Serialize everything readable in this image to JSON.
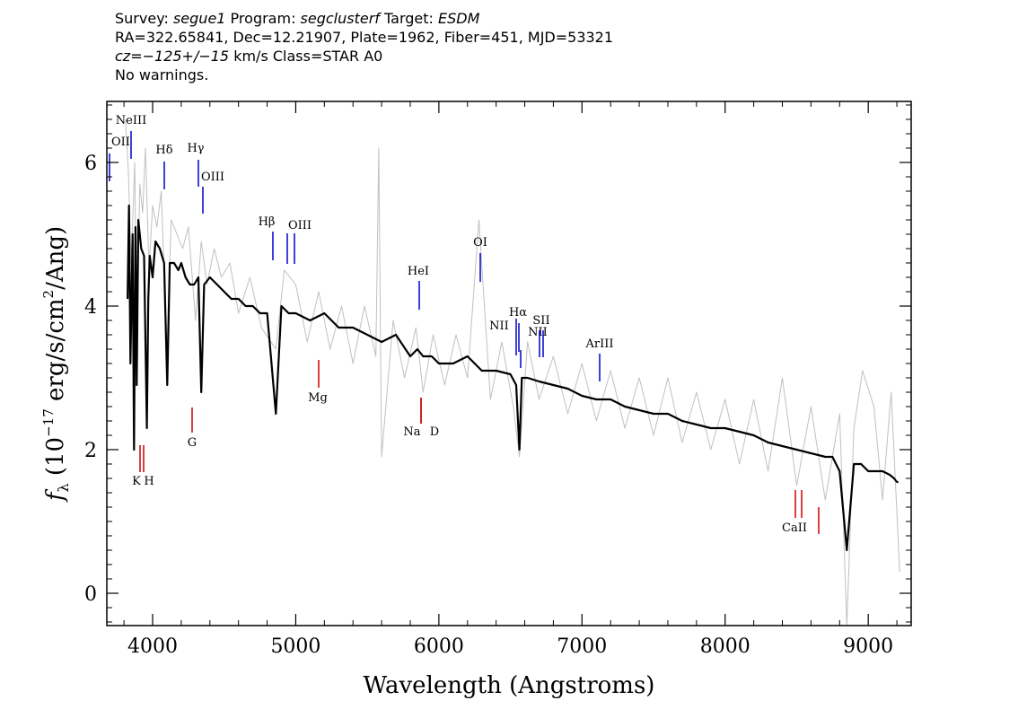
{
  "header": {
    "survey_key": "Survey: ",
    "survey": "segue1",
    "program_key": " Program: ",
    "program": "segclusterf",
    "target_key": " Target: ",
    "target": "ESDM",
    "line2": "RA=322.65841, Dec=12.21907, Plate=1962, Fiber=451, MJD=53321",
    "cz": "cz=−125+/−15",
    "cz_rest": " km/s Class=STAR A0",
    "warnings": "No warnings."
  },
  "chart_data": {
    "type": "line",
    "xlabel": "Wavelength (Angstroms)",
    "ylabel_prefix": "f",
    "ylabel_sub": "λ",
    "ylabel_open": " (10",
    "ylabel_exp": "−17",
    "ylabel_mid": " erg/s/cm",
    "ylabel_exp2": "2",
    "ylabel_close": "/Ang)",
    "xlim": [
      3680,
      9300
    ],
    "ylim": [
      -0.45,
      6.85
    ],
    "x_ticks": [
      4000,
      5000,
      6000,
      7000,
      8000,
      9000
    ],
    "x_tick_labels": [
      "4000",
      "5000",
      "6000",
      "7000",
      "8000",
      "9000"
    ],
    "y_ticks": [
      0,
      2,
      4,
      6
    ],
    "y_tick_labels": [
      "0",
      "2",
      "4",
      "6"
    ],
    "colors": {
      "flux": "#000000",
      "flux_raw": "#c0c0c0",
      "emission": "#0000cc",
      "absorption": "#cc0000"
    },
    "series": [
      {
        "role": "flux-smoothed",
        "x": [
          3825,
          3835,
          3845,
          3860,
          3870,
          3880,
          3889,
          3900,
          3920,
          3940,
          3960,
          3970,
          3980,
          4000,
          4020,
          4050,
          4080,
          4102,
          4120,
          4150,
          4180,
          4200,
          4230,
          4260,
          4290,
          4320,
          4340,
          4360,
          4400,
          4450,
          4500,
          4550,
          4600,
          4650,
          4700,
          4750,
          4800,
          4861,
          4900,
          4950,
          5000,
          5100,
          5200,
          5300,
          5400,
          5500,
          5600,
          5700,
          5800,
          5850,
          5890,
          5950,
          6000,
          6100,
          6200,
          6300,
          6400,
          6500,
          6540,
          6563,
          6580,
          6620,
          6700,
          6800,
          6900,
          7000,
          7100,
          7200,
          7300,
          7400,
          7500,
          7600,
          7700,
          7800,
          7900,
          8000,
          8100,
          8200,
          8300,
          8400,
          8500,
          8600,
          8700,
          8750,
          8800,
          8850,
          8900,
          8950,
          9000,
          9050,
          9100,
          9150,
          9180,
          9200,
          9210
        ],
        "y": [
          4.1,
          5.4,
          3.2,
          5.0,
          2.0,
          5.1,
          2.9,
          5.2,
          4.8,
          4.7,
          2.3,
          4.1,
          4.7,
          4.4,
          4.9,
          4.8,
          4.6,
          2.9,
          4.6,
          4.6,
          4.5,
          4.6,
          4.4,
          4.3,
          4.3,
          4.4,
          2.8,
          4.3,
          4.4,
          4.3,
          4.2,
          4.1,
          4.1,
          4.0,
          4.0,
          3.9,
          3.9,
          2.5,
          4.0,
          3.9,
          3.9,
          3.8,
          3.9,
          3.7,
          3.7,
          3.6,
          3.5,
          3.6,
          3.3,
          3.4,
          3.3,
          3.3,
          3.2,
          3.2,
          3.3,
          3.1,
          3.1,
          3.05,
          2.9,
          2.0,
          3.0,
          3.0,
          2.95,
          2.9,
          2.85,
          2.75,
          2.7,
          2.7,
          2.6,
          2.55,
          2.5,
          2.5,
          2.4,
          2.35,
          2.3,
          2.3,
          2.25,
          2.2,
          2.1,
          2.05,
          2.0,
          1.95,
          1.9,
          1.9,
          1.7,
          0.6,
          1.8,
          1.8,
          1.7,
          1.7,
          1.7,
          1.65,
          1.6,
          1.55,
          1.55
        ]
      },
      {
        "role": "flux-raw",
        "x": [
          3810,
          3830,
          3850,
          3875,
          3890,
          3910,
          3930,
          3950,
          3975,
          4000,
          4030,
          4060,
          4100,
          4130,
          4170,
          4210,
          4250,
          4300,
          4340,
          4380,
          4430,
          4480,
          4540,
          4600,
          4680,
          4760,
          4861,
          4920,
          5000,
          5080,
          5160,
          5240,
          5320,
          5400,
          5480,
          5560,
          5580,
          5600,
          5680,
          5760,
          5840,
          5890,
          5960,
          6040,
          6120,
          6200,
          6280,
          6360,
          6440,
          6520,
          6563,
          6620,
          6700,
          6800,
          6900,
          7000,
          7100,
          7200,
          7300,
          7400,
          7500,
          7600,
          7700,
          7800,
          7900,
          8000,
          8100,
          8200,
          8300,
          8400,
          8500,
          8600,
          8700,
          8800,
          8850,
          8900,
          8960,
          9040,
          9100,
          9160,
          9220
        ],
        "y": [
          6.6,
          5.9,
          4.6,
          6.0,
          3.4,
          5.7,
          5.3,
          6.2,
          4.5,
          5.4,
          5.1,
          5.6,
          3.4,
          5.2,
          5.0,
          4.8,
          5.1,
          3.8,
          4.9,
          4.3,
          4.8,
          4.4,
          4.6,
          3.9,
          4.4,
          3.7,
          3.4,
          4.5,
          4.3,
          3.5,
          4.2,
          3.4,
          4.0,
          3.2,
          4.0,
          3.3,
          6.2,
          1.9,
          3.8,
          3.0,
          3.7,
          2.8,
          3.6,
          2.9,
          3.6,
          3.0,
          5.2,
          2.7,
          3.5,
          2.6,
          1.9,
          3.5,
          2.7,
          3.3,
          2.5,
          3.2,
          2.4,
          3.1,
          2.3,
          3.0,
          2.2,
          3.0,
          2.1,
          2.8,
          2.0,
          2.7,
          1.8,
          2.7,
          1.7,
          3.0,
          1.5,
          2.6,
          1.3,
          2.5,
          -0.45,
          2.3,
          3.1,
          2.6,
          1.3,
          2.8,
          0.3
        ]
      }
    ],
    "emission_lines": [
      {
        "label": "OII",
        "x": 3727
      },
      {
        "label": "NeIII",
        "x": 3869
      },
      {
        "label": "Hδ",
        "x": 4102
      },
      {
        "label": "Hγ",
        "x": 4340
      },
      {
        "label": "OIII",
        "x": 4363
      },
      {
        "label": "Hβ",
        "x": 4861
      },
      {
        "label": "OIII",
        "x": 4959
      },
      {
        "label": "OIII",
        "x": 5007
      },
      {
        "label": "HeI",
        "x": 5876
      },
      {
        "label": "OI",
        "x": 6300
      },
      {
        "label": "NII",
        "x": 6548
      },
      {
        "label": "Hα",
        "x": 6563
      },
      {
        "label": "NII",
        "x": 6584
      },
      {
        "label": "SII",
        "x": 6717
      },
      {
        "label": "SII",
        "x": 6731
      },
      {
        "label": "ArIII",
        "x": 7136
      }
    ],
    "absorption_lines": [
      {
        "label": "K",
        "x": 3934
      },
      {
        "label": "H",
        "x": 3969
      },
      {
        "label": "G",
        "x": 4304
      },
      {
        "label": "Mg",
        "x": 5175
      },
      {
        "label": "Na",
        "x": 5890
      },
      {
        "label": "D",
        "x": 5896
      },
      {
        "label": "CaII",
        "x": 8498
      },
      {
        "label": "CaII",
        "x": 8542
      },
      {
        "label": "CaII",
        "x": 8662
      }
    ]
  }
}
